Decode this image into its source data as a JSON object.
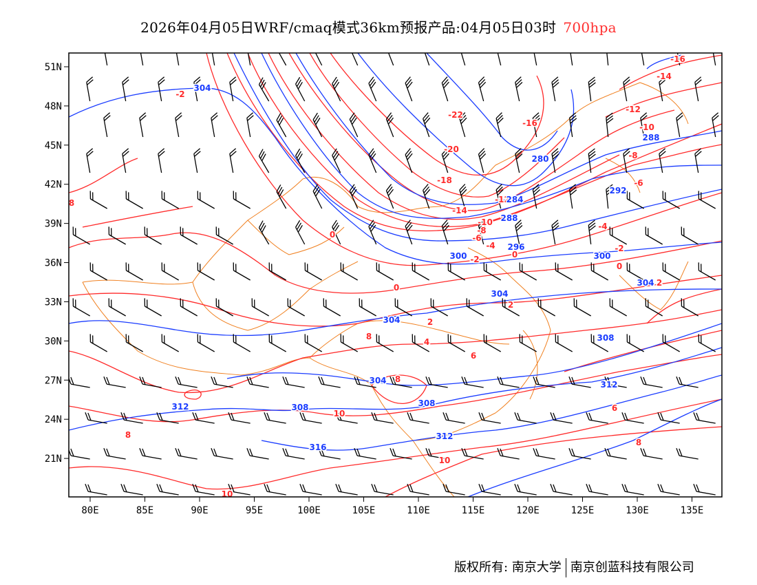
{
  "title": {
    "main": "2026年04月05日WRF/cmaq模式36km预报产品:04月05日03时",
    "level": "700hpa"
  },
  "axes": {
    "lon_ticks": [
      "80E",
      "85E",
      "90E",
      "95E",
      "100E",
      "105E",
      "110E",
      "115E",
      "120E",
      "125E",
      "130E",
      "135E"
    ],
    "lat_ticks": [
      "51N",
      "48N",
      "45N",
      "42N",
      "39N",
      "36N",
      "33N",
      "30N",
      "27N",
      "24N",
      "21N"
    ],
    "lon_range": [
      78,
      138
    ],
    "lat_range": [
      18,
      52
    ]
  },
  "colors": {
    "temperature": "#ff2a2a",
    "height": "#1a3cff",
    "border": "#f08020",
    "wind": "#000000"
  },
  "temperature_labels": [
    "-16",
    "-14",
    "-12",
    "-10",
    "-8",
    "-6",
    "-4",
    "-2",
    "0",
    "2",
    "-22",
    "-20",
    "-16",
    "-18",
    "-14",
    "-12",
    "-10",
    "-8",
    "-6",
    "-4",
    "-2",
    "0",
    "0",
    "0",
    "2",
    "2",
    "4",
    "6",
    "8",
    "8",
    "6",
    "8",
    "10",
    "10",
    "10",
    "8",
    "8",
    "-2"
  ],
  "height_labels": [
    "304",
    "288",
    "280",
    "292",
    "284",
    "288",
    "296",
    "300",
    "300",
    "304",
    "304",
    "304",
    "308",
    "312",
    "304",
    "308",
    "308",
    "312",
    "312",
    "316"
  ],
  "footer": {
    "left": "版权所有: 南京大学",
    "right": "南京创蓝科技有限公司"
  }
}
